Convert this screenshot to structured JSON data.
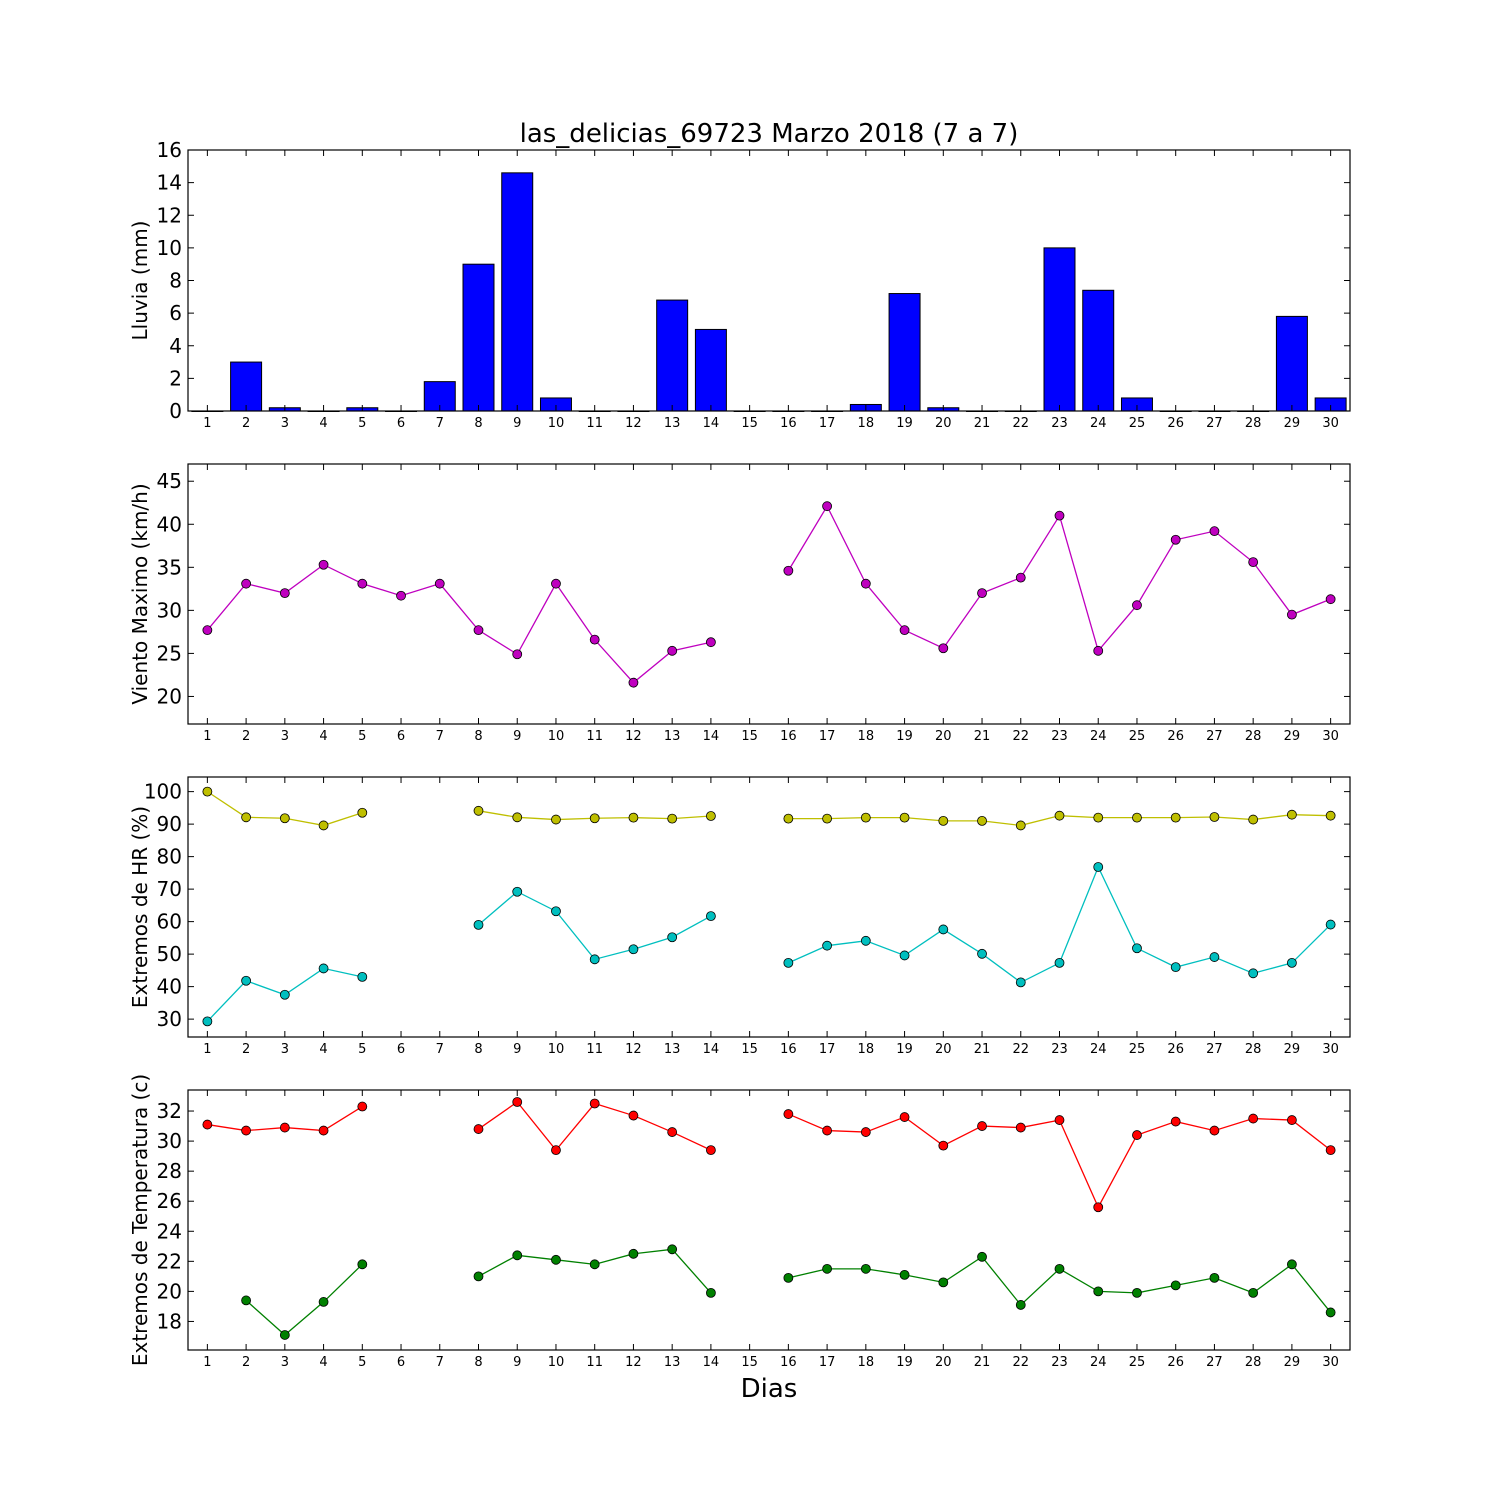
{
  "figure": {
    "title": "las_delicias_69723 Marzo 2018  (7 a 7)",
    "xlabel": "Dias"
  },
  "chart_data": [
    {
      "type": "bar",
      "ylabel": "Lluvia (mm)",
      "x": [
        1,
        2,
        3,
        4,
        5,
        6,
        7,
        8,
        9,
        10,
        11,
        12,
        13,
        14,
        15,
        16,
        17,
        18,
        19,
        20,
        21,
        22,
        23,
        24,
        25,
        26,
        27,
        28,
        29,
        30
      ],
      "ylim": [
        0,
        16
      ],
      "yticks": [
        0,
        2,
        4,
        6,
        8,
        10,
        12,
        14,
        16
      ],
      "grid": false,
      "series": [
        {
          "color": "#0000ff",
          "values": [
            0,
            3.0,
            0.2,
            0,
            0.2,
            0,
            1.8,
            9.0,
            14.6,
            0.8,
            0,
            0,
            6.8,
            5.0,
            0,
            0,
            0,
            0.4,
            7.2,
            0.2,
            0,
            0,
            10.0,
            7.4,
            0.8,
            0,
            0,
            0,
            5.8,
            0.8
          ]
        }
      ]
    },
    {
      "type": "line",
      "ylabel": "Viento Maximo (km/h)",
      "x": [
        1,
        2,
        3,
        4,
        5,
        6,
        7,
        8,
        9,
        10,
        11,
        12,
        13,
        14,
        15,
        16,
        17,
        18,
        19,
        20,
        21,
        22,
        23,
        24,
        25,
        26,
        27,
        28,
        29,
        30
      ],
      "ylim": [
        16.8,
        47.0
      ],
      "yticks": [
        20,
        25,
        30,
        35,
        40,
        45
      ],
      "grid": false,
      "series": [
        {
          "color": "#bf00bf",
          "values": [
            27.7,
            33.1,
            32.0,
            35.3,
            33.1,
            31.7,
            33.1,
            27.7,
            24.9,
            33.1,
            26.6,
            21.6,
            25.3,
            26.3,
            null,
            34.6,
            42.1,
            33.1,
            27.7,
            25.6,
            32.0,
            33.8,
            41.0,
            25.3,
            30.6,
            38.2,
            39.2,
            35.6,
            29.5,
            31.3
          ]
        }
      ]
    },
    {
      "type": "line",
      "ylabel": "Extremos de HR (%)",
      "x": [
        1,
        2,
        3,
        4,
        5,
        6,
        7,
        8,
        9,
        10,
        11,
        12,
        13,
        14,
        15,
        16,
        17,
        18,
        19,
        20,
        21,
        22,
        23,
        24,
        25,
        26,
        27,
        28,
        29,
        30
      ],
      "ylim": [
        24.5,
        104.5
      ],
      "yticks": [
        30,
        40,
        50,
        60,
        70,
        80,
        90,
        100
      ],
      "grid": false,
      "series": [
        {
          "color": "#bfbf00",
          "values": [
            100,
            92.1,
            91.8,
            89.6,
            93.5,
            null,
            null,
            94.1,
            92.1,
            91.4,
            91.8,
            92.0,
            91.7,
            92.5,
            null,
            91.7,
            91.7,
            92.0,
            92.0,
            91.0,
            91.0,
            89.6,
            92.6,
            92.0,
            92.0,
            92.0,
            92.2,
            91.4,
            92.9,
            92.6
          ]
        },
        {
          "color": "#00bfbf",
          "values": [
            29.3,
            41.8,
            37.5,
            45.6,
            43.0,
            null,
            null,
            59.0,
            69.2,
            63.2,
            48.4,
            51.5,
            55.2,
            61.7,
            null,
            47.3,
            52.6,
            54.1,
            49.6,
            57.6,
            50.1,
            41.3,
            47.3,
            76.8,
            51.8,
            46.0,
            49.1,
            44.1,
            47.3,
            59.1
          ]
        }
      ]
    },
    {
      "type": "line",
      "ylabel": "Extremos de Temperatura (c)",
      "x": [
        1,
        2,
        3,
        4,
        5,
        6,
        7,
        8,
        9,
        10,
        11,
        12,
        13,
        14,
        15,
        16,
        17,
        18,
        19,
        20,
        21,
        22,
        23,
        24,
        25,
        26,
        27,
        28,
        29,
        30
      ],
      "ylim": [
        16.1,
        33.4
      ],
      "yticks": [
        18,
        20,
        22,
        24,
        26,
        28,
        30,
        32
      ],
      "grid": false,
      "series": [
        {
          "color": "#ff0000",
          "values": [
            31.1,
            30.7,
            30.9,
            30.7,
            32.3,
            null,
            null,
            30.8,
            32.6,
            29.4,
            32.5,
            31.7,
            30.6,
            29.4,
            null,
            31.8,
            30.7,
            30.6,
            31.6,
            29.7,
            31.0,
            30.9,
            31.4,
            25.6,
            30.4,
            31.3,
            30.7,
            31.5,
            31.4,
            29.4
          ]
        },
        {
          "color": "#008000",
          "values": [
            null,
            19.4,
            17.1,
            19.3,
            21.8,
            null,
            null,
            21.0,
            22.4,
            22.1,
            21.8,
            22.5,
            22.8,
            19.9,
            null,
            20.9,
            21.5,
            21.5,
            21.1,
            20.6,
            22.3,
            19.1,
            21.5,
            20.0,
            19.9,
            20.4,
            20.9,
            19.9,
            21.8,
            18.6
          ]
        }
      ]
    }
  ]
}
